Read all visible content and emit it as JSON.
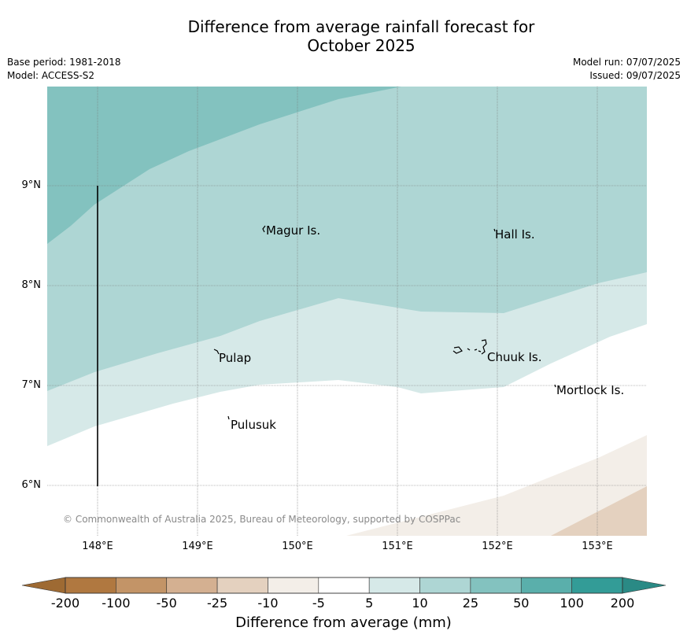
{
  "title": "Difference from average rainfall forecast for October 2025",
  "title_lines": [
    "Difference from average rainfall forecast for",
    "October 2025"
  ],
  "meta": {
    "base_period": "Base period: 1981-2018",
    "model": "Model: ACCESS-S2",
    "model_run": "Model run: 07/07/2025",
    "issued": "Issued: 09/07/2025"
  },
  "map": {
    "lon_labels": [
      "148°E",
      "149°E",
      "150°E",
      "151°E",
      "152°E",
      "153°E"
    ],
    "lat_labels": [
      "9°N",
      "8°N",
      "7°N",
      "6°N"
    ],
    "places": [
      {
        "name": "Magur Is."
      },
      {
        "name": "Hall Is."
      },
      {
        "name": "Pulap"
      },
      {
        "name": "Chuuk Is."
      },
      {
        "name": "Mortlock Is."
      },
      {
        "name": "Pulusuk"
      }
    ],
    "copyright": "© Commonwealth of Australia 2025, Bureau of Meteorology, supported by COSPPac"
  },
  "legend": {
    "ticks": [
      "-200",
      "-100",
      "-50",
      "-25",
      "-10",
      "-5",
      "5",
      "10",
      "25",
      "50",
      "100",
      "200"
    ],
    "colors": [
      "#b07840",
      "#c39467",
      "#d4b091",
      "#e4d1bf",
      "#f3eee8",
      "#ffffff",
      "#d6e9e8",
      "#aed6d4",
      "#83c2bf",
      "#5aafab",
      "#339c97"
    ],
    "under_color": "#9e6a33",
    "over_color": "#2a8a85",
    "label": "Difference from average (mm)"
  }
}
